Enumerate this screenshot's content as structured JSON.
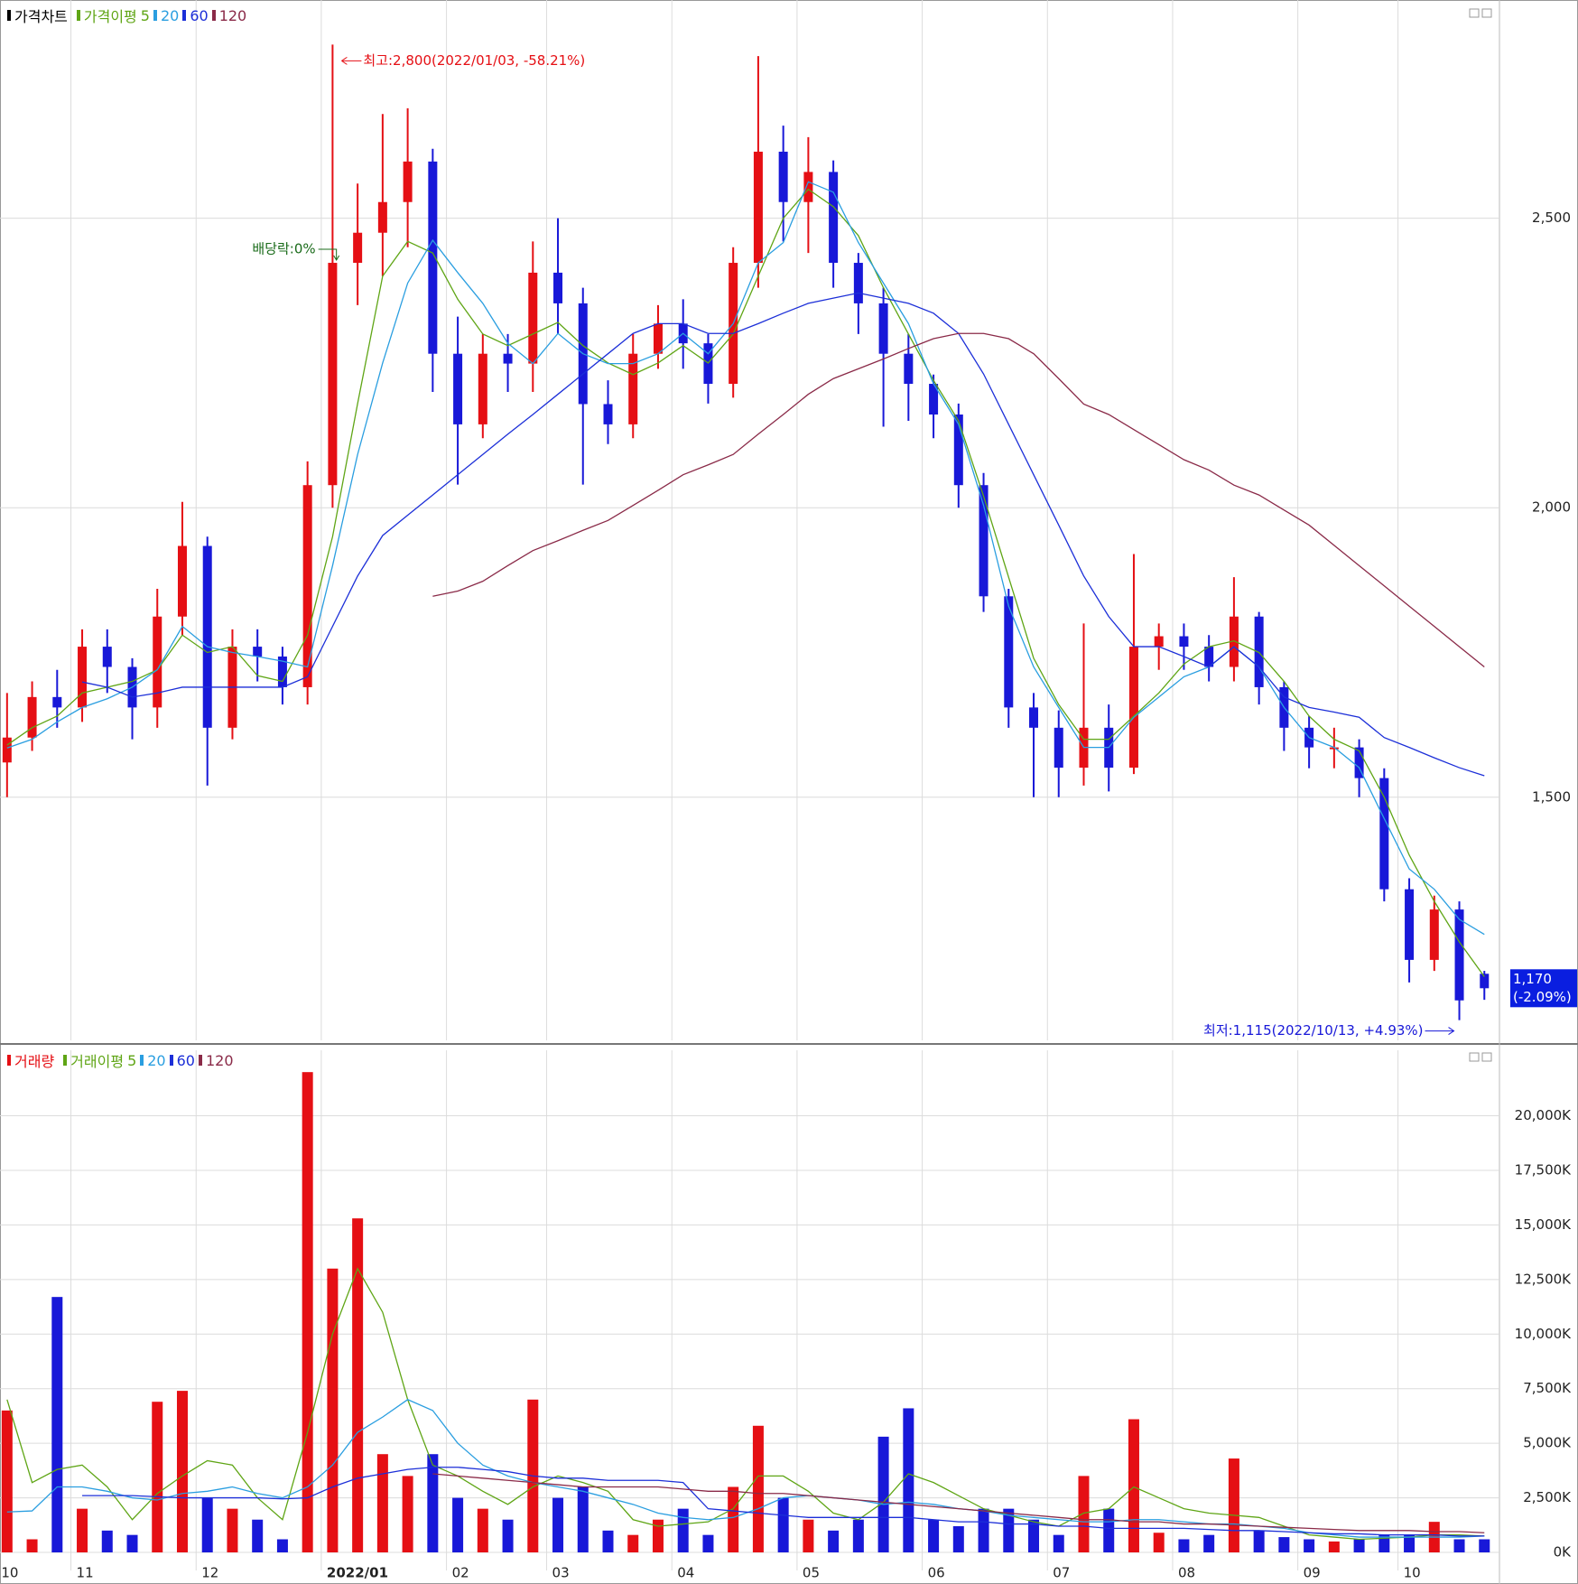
{
  "chart_data": [
    {
      "type": "candlestick",
      "title": "가격차트",
      "ma_title": "가격이평",
      "up_color": "#e50f14",
      "down_color": "#1818d8",
      "open": [
        1560,
        1603,
        1673,
        1655,
        1760,
        1725,
        1655,
        1812,
        1934,
        1620,
        1760,
        1743,
        1690,
        2039,
        2423,
        2475,
        2528,
        2598,
        2266,
        2144,
        2266,
        2249,
        2406,
        2353,
        2179,
        2144,
        2266,
        2318,
        2284,
        2214,
        2423,
        2615,
        2528,
        2580,
        2423,
        2353,
        2266,
        2214,
        2161,
        2039,
        1847,
        1655,
        1620,
        1551,
        1620,
        1551,
        1760,
        1778,
        1760,
        1725,
        1812,
        1690,
        1620,
        1586,
        1586,
        1533,
        1341,
        1219,
        1306,
        1195
      ],
      "high": [
        1680,
        1700,
        1720,
        1790,
        1790,
        1740,
        1860,
        2010,
        1950,
        1790,
        1790,
        1760,
        2080,
        2800,
        2560,
        2680,
        2690,
        2620,
        2330,
        2300,
        2300,
        2460,
        2500,
        2380,
        2220,
        2300,
        2350,
        2360,
        2300,
        2450,
        2780,
        2660,
        2640,
        2600,
        2440,
        2380,
        2300,
        2230,
        2180,
        2060,
        1860,
        1680,
        1650,
        1800,
        1660,
        1920,
        1800,
        1800,
        1780,
        1880,
        1820,
        1700,
        1640,
        1620,
        1600,
        1550,
        1360,
        1330,
        1320,
        1200
      ],
      "low": [
        1500,
        1580,
        1620,
        1630,
        1680,
        1600,
        1620,
        1780,
        1520,
        1600,
        1700,
        1660,
        1660,
        2000,
        2350,
        2400,
        2450,
        2200,
        2040,
        2120,
        2200,
        2200,
        2300,
        2040,
        2110,
        2120,
        2240,
        2240,
        2180,
        2190,
        2380,
        2460,
        2440,
        2380,
        2300,
        2140,
        2150,
        2120,
        2000,
        1820,
        1620,
        1500,
        1500,
        1520,
        1510,
        1540,
        1720,
        1720,
        1700,
        1700,
        1660,
        1580,
        1550,
        1550,
        1500,
        1320,
        1180,
        1200,
        1115,
        1150
      ],
      "close": [
        1603,
        1673,
        1655,
        1760,
        1725,
        1655,
        1812,
        1934,
        1620,
        1760,
        1743,
        1690,
        2039,
        2423,
        2475,
        2528,
        2598,
        2266,
        2144,
        2266,
        2249,
        2406,
        2353,
        2179,
        2144,
        2266,
        2318,
        2284,
        2214,
        2423,
        2615,
        2528,
        2580,
        2423,
        2353,
        2266,
        2214,
        2161,
        2039,
        1847,
        1655,
        1620,
        1551,
        1620,
        1551,
        1760,
        1778,
        1760,
        1725,
        1812,
        1690,
        1620,
        1586,
        1586,
        1533,
        1341,
        1219,
        1306,
        1149,
        1170
      ],
      "series": [
        {
          "name": "5",
          "color": "#5fa515",
          "values": [
            1590,
            1620,
            1640,
            1680,
            1690,
            1700,
            1720,
            1780,
            1750,
            1760,
            1710,
            1700,
            1780,
            1950,
            2180,
            2400,
            2460,
            2440,
            2360,
            2300,
            2280,
            2300,
            2320,
            2280,
            2250,
            2230,
            2250,
            2280,
            2250,
            2300,
            2400,
            2500,
            2550,
            2520,
            2470,
            2380,
            2300,
            2220,
            2150,
            2020,
            1880,
            1740,
            1660,
            1600,
            1600,
            1640,
            1680,
            1730,
            1760,
            1770,
            1750,
            1700,
            1640,
            1600,
            1580,
            1500,
            1400,
            1320,
            1250,
            1190
          ]
        },
        {
          "name": "20",
          "color": "#2a9ee0",
          "values": [
            1585,
            1600,
            1630,
            1655,
            1670,
            1690,
            1720,
            1795,
            1760,
            1750,
            1743,
            1735,
            1725,
            1900,
            2092,
            2250,
            2388,
            2462,
            2406,
            2353,
            2284,
            2249,
            2301,
            2266,
            2249,
            2249,
            2266,
            2301,
            2266,
            2318,
            2423,
            2458,
            2563,
            2545,
            2458,
            2388,
            2318,
            2214,
            2144,
            2004,
            1830,
            1725,
            1655,
            1586,
            1586,
            1638,
            1673,
            1708,
            1725,
            1760,
            1725,
            1655,
            1603,
            1586,
            1551,
            1463,
            1376,
            1341,
            1289,
            1263
          ]
        },
        {
          "name": "60",
          "color": "#1c2fd8",
          "values": [
            null,
            null,
            null,
            1699,
            1690,
            1673,
            1680,
            1690,
            1690,
            1690,
            1690,
            1690,
            1708,
            1795,
            1882,
            1952,
            1987,
            2022,
            2057,
            2092,
            2127,
            2161,
            2196,
            2231,
            2266,
            2301,
            2318,
            2318,
            2301,
            2301,
            2318,
            2336,
            2353,
            2362,
            2371,
            2362,
            2353,
            2336,
            2301,
            2231,
            2144,
            2057,
            1970,
            1882,
            1812,
            1760,
            1760,
            1743,
            1725,
            1760,
            1725,
            1673,
            1655,
            1647,
            1638,
            1603,
            1586,
            1568,
            1551,
            1537
          ]
        },
        {
          "name": "120",
          "color": "#8a2a48",
          "values": [
            null,
            null,
            null,
            null,
            null,
            null,
            null,
            null,
            null,
            null,
            null,
            null,
            null,
            null,
            null,
            null,
            null,
            1847,
            1856,
            1873,
            1900,
            1926,
            1943,
            1961,
            1978,
            2004,
            2030,
            2057,
            2074,
            2092,
            2127,
            2161,
            2196,
            2223,
            2240,
            2257,
            2275,
            2292,
            2301,
            2301,
            2292,
            2266,
            2223,
            2179,
            2161,
            2135,
            2109,
            2083,
            2065,
            2039,
            2022,
            1996,
            1970,
            1935,
            1900,
            1865,
            1830,
            1795,
            1760,
            1725
          ]
        }
      ],
      "ylim": [
        1080,
        2877
      ],
      "yticks": [
        {
          "value": 1500,
          "label": "1,500"
        },
        {
          "value": 2000,
          "label": "2,000"
        },
        {
          "value": 2500,
          "label": "2,500"
        }
      ],
      "grid": true,
      "annotations": {
        "high": "최고:2,800(2022/01/03, -58.21%)",
        "dividend": "배당락:0%",
        "low": "최저:1,115(2022/10/13, +4.93%)"
      },
      "last_price": {
        "value": 1170,
        "label": "1,170"
      },
      "last_change": "(-2.09%)"
    },
    {
      "type": "bar",
      "title": "거래량",
      "ma_title": "거래이평",
      "categories": [
        "10",
        null,
        null,
        "11",
        null,
        null,
        null,
        null,
        "12",
        null,
        null,
        null,
        null,
        "2022/01",
        null,
        null,
        null,
        null,
        "02",
        null,
        null,
        null,
        "03",
        null,
        null,
        null,
        null,
        "04",
        null,
        null,
        null,
        null,
        "05",
        null,
        null,
        null,
        null,
        "06",
        null,
        null,
        null,
        null,
        "07",
        null,
        null,
        null,
        null,
        "08",
        null,
        null,
        null,
        null,
        "09",
        null,
        null,
        null,
        "10",
        null,
        null,
        null
      ],
      "values": [
        6500,
        600,
        11700,
        2000,
        1000,
        800,
        6900,
        7400,
        2500,
        2000,
        1500,
        600,
        22000,
        13000,
        15300,
        4500,
        3500,
        4500,
        2500,
        2000,
        1500,
        7000,
        2500,
        3000,
        1000,
        800,
        1500,
        2000,
        800,
        3000,
        5800,
        2500,
        1500,
        1000,
        1500,
        5300,
        6600,
        1500,
        1200,
        2000,
        2000,
        1500,
        800,
        3500,
        2000,
        6100,
        900,
        600,
        800,
        4300,
        1000,
        700,
        600,
        500,
        600,
        800,
        800,
        1400,
        600,
        600
      ],
      "series": [
        {
          "name": "5",
          "color": "#5fa515",
          "values": [
            7000,
            3200,
            3800,
            4000,
            3000,
            1500,
            2700,
            3500,
            4200,
            4000,
            2500,
            1500,
            5500,
            10000,
            13000,
            11000,
            7000,
            4000,
            3500,
            2800,
            2200,
            3000,
            3500,
            3200,
            2800,
            1500,
            1200,
            1300,
            1400,
            2000,
            3500,
            3500,
            2800,
            1800,
            1500,
            2300,
            3600,
            3200,
            2600,
            2000,
            1700,
            1400,
            1200,
            1800,
            2000,
            3000,
            2500,
            2000,
            1800,
            1700,
            1600,
            1200,
            800,
            700,
            600,
            650,
            700,
            800,
            800,
            750
          ]
        },
        {
          "name": "20",
          "color": "#2a9ee0",
          "values": [
            1850,
            1900,
            3000,
            3000,
            2800,
            2500,
            2400,
            2700,
            2800,
            3000,
            2700,
            2500,
            3000,
            4000,
            5500,
            6200,
            7000,
            6500,
            5000,
            4000,
            3500,
            3200,
            3000,
            2800,
            2500,
            2200,
            1800,
            1600,
            1500,
            1600,
            2000,
            2500,
            2600,
            2500,
            2400,
            2200,
            2300,
            2200,
            2000,
            1900,
            1700,
            1600,
            1500,
            1400,
            1400,
            1500,
            1500,
            1400,
            1300,
            1300,
            1200,
            1100,
            900,
            800,
            700,
            700,
            700,
            700,
            700,
            750
          ]
        },
        {
          "name": "60",
          "color": "#1c2fd8",
          "values": [
            null,
            null,
            null,
            2600,
            2600,
            2600,
            2550,
            2500,
            2500,
            2500,
            2500,
            2450,
            2500,
            3000,
            3400,
            3600,
            3800,
            3900,
            3900,
            3800,
            3700,
            3500,
            3400,
            3400,
            3300,
            3300,
            3300,
            3200,
            2000,
            1900,
            1800,
            1700,
            1600,
            1600,
            1600,
            1600,
            1600,
            1500,
            1400,
            1400,
            1300,
            1300,
            1200,
            1200,
            1100,
            1100,
            1100,
            1100,
            1050,
            1000,
            1000,
            950,
            900,
            850,
            850,
            800,
            800,
            800,
            750,
            750
          ]
        },
        {
          "name": "120",
          "color": "#8a2a48",
          "values": [
            null,
            null,
            null,
            null,
            null,
            null,
            null,
            null,
            null,
            null,
            null,
            null,
            null,
            null,
            null,
            null,
            null,
            3600,
            3500,
            3400,
            3300,
            3200,
            3100,
            3000,
            3000,
            3000,
            3000,
            2900,
            2800,
            2800,
            2700,
            2700,
            2600,
            2500,
            2400,
            2300,
            2200,
            2100,
            2000,
            1900,
            1800,
            1700,
            1600,
            1500,
            1500,
            1400,
            1400,
            1300,
            1300,
            1250,
            1200,
            1150,
            1100,
            1050,
            1000,
            1000,
            1000,
            950,
            950,
            900
          ]
        }
      ],
      "ylim": [
        0,
        23000
      ],
      "yticks": [
        {
          "value": 0,
          "label": "0K"
        },
        {
          "value": 2500,
          "label": "2,500K"
        },
        {
          "value": 5000,
          "label": "5,000K"
        },
        {
          "value": 7500,
          "label": "7,500K"
        },
        {
          "value": 10000,
          "label": "10,000K"
        },
        {
          "value": 12500,
          "label": "12,500K"
        },
        {
          "value": 15000,
          "label": "15,000K"
        },
        {
          "value": 17500,
          "label": "17,500K"
        },
        {
          "value": 20000,
          "label": "20,000K"
        }
      ],
      "grid": true
    }
  ]
}
